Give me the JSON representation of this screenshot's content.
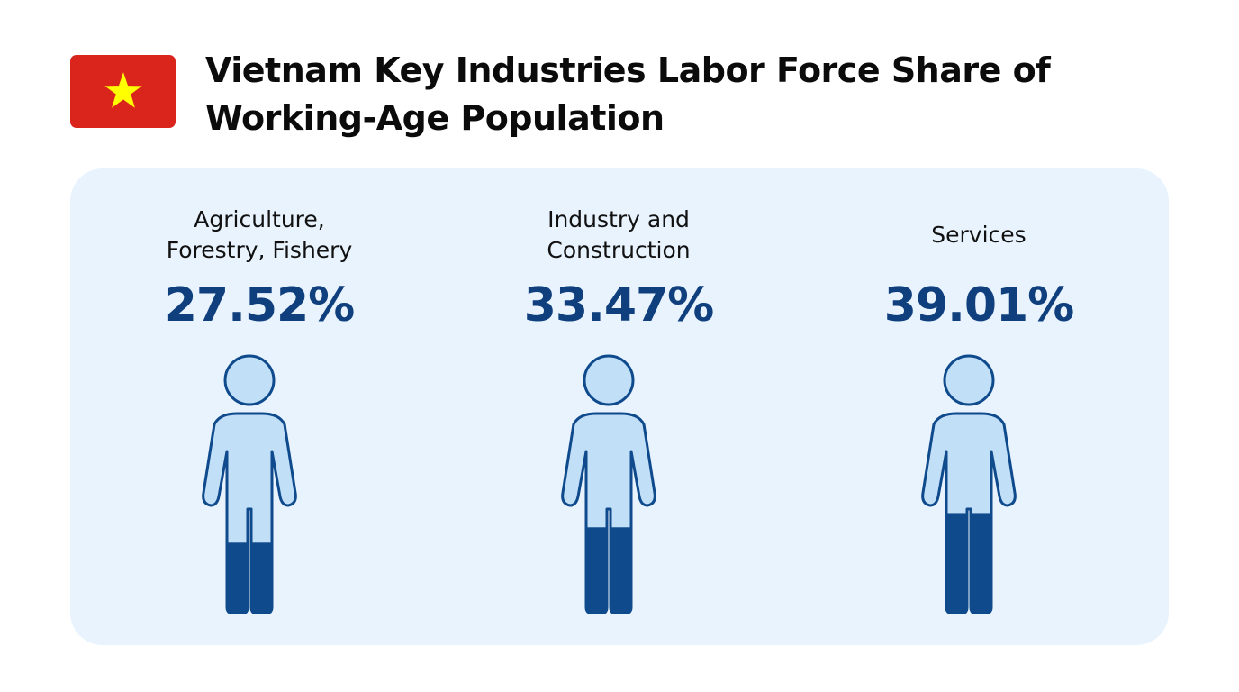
{
  "flag": {
    "name": "Vietnam",
    "background_color": "#da251d",
    "star_color": "#ffff00"
  },
  "chart_data": {
    "type": "pictograph",
    "title": "Vietnam Key Industries Labor Force Share of Working-Age Population",
    "unit": "%",
    "categories": [
      "Agriculture,\nForestry, Fishery",
      "Industry and\nConstruction",
      "Services"
    ],
    "values": [
      27.52,
      33.47,
      39.01
    ],
    "value_labels": [
      "27.52%",
      "33.47%",
      "39.01%"
    ],
    "colors": {
      "filled": "#0f4a8c",
      "unfilled": "#c2dff8",
      "outline": "#0f4a8c",
      "value_text": "#0f3f7d",
      "panel_background": "#e8f3fe"
    }
  }
}
